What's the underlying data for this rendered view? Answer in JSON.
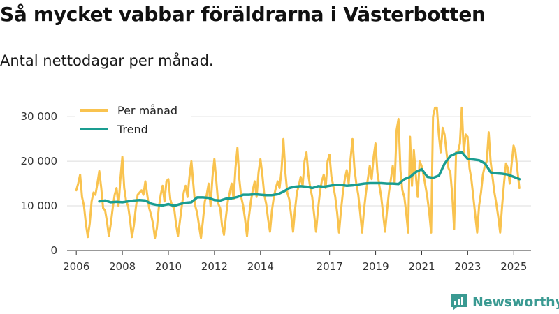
{
  "chart_data": {
    "type": "line",
    "title": "Så mycket vabbar föräldrarna i Västerbotten",
    "subtitle": "Antal nettodagar per månad.",
    "xlabel": "",
    "ylabel": "",
    "ylim": [
      0,
      33000
    ],
    "xlim": [
      2005.6,
      2025.75
    ],
    "grid": true,
    "legend_position": "top-left",
    "y_ticks": [
      {
        "value": 0,
        "label": "0"
      },
      {
        "value": 10000,
        "label": "10 000"
      },
      {
        "value": 20000,
        "label": "20 000"
      },
      {
        "value": 30000,
        "label": "30 000"
      }
    ],
    "x_ticks": [
      {
        "value": 2006,
        "label": "2006"
      },
      {
        "value": 2008,
        "label": "2008"
      },
      {
        "value": 2010,
        "label": "2010"
      },
      {
        "value": 2012,
        "label": "2012"
      },
      {
        "value": 2014,
        "label": "2014"
      },
      {
        "value": 2017,
        "label": "2017"
      },
      {
        "value": 2019,
        "label": "2019"
      },
      {
        "value": 2021,
        "label": "2021"
      },
      {
        "value": 2023,
        "label": "2023"
      },
      {
        "value": 2025,
        "label": "2025"
      }
    ],
    "series": [
      {
        "name": "Per månad",
        "color": "#f9c34f",
        "x_start": 2006.0,
        "x_step": 0.0833,
        "values": [
          13500,
          15000,
          17000,
          12000,
          10000,
          6000,
          3000,
          6000,
          11000,
          13000,
          12500,
          15000,
          17800,
          14000,
          9500,
          9000,
          6500,
          3200,
          6000,
          9500,
          12500,
          14000,
          10000,
          16000,
          21000,
          14000,
          11000,
          10000,
          7000,
          3000,
          5500,
          9500,
          12500,
          13000,
          13500,
          12500,
          15500,
          12500,
          9500,
          8000,
          6000,
          2800,
          5000,
          9500,
          12500,
          14500,
          11000,
          15500,
          16000,
          11500,
          10000,
          9500,
          6000,
          3200,
          6500,
          10000,
          13000,
          14500,
          12000,
          16500,
          20000,
          15000,
          10000,
          8500,
          5500,
          2800,
          6500,
          11000,
          12500,
          15000,
          10000,
          16500,
          20500,
          15500,
          10500,
          9500,
          5500,
          3500,
          7500,
          11000,
          13000,
          15000,
          11500,
          18500,
          23000,
          16000,
          12000,
          10000,
          7000,
          3200,
          7500,
          11000,
          13500,
          15500,
          12000,
          17500,
          20500,
          17000,
          12500,
          10500,
          7000,
          4200,
          9000,
          12000,
          14000,
          15500,
          14000,
          18000,
          25000,
          17500,
          13000,
          11500,
          8000,
          4200,
          9000,
          13000,
          14500,
          16500,
          14500,
          20000,
          22000,
          17000,
          14000,
          12000,
          8000,
          4200,
          9000,
          13000,
          15500,
          17000,
          14000,
          20000,
          21500,
          16500,
          14500,
          12000,
          8500,
          4000,
          9000,
          13000,
          16000,
          18000,
          15000,
          20500,
          25000,
          18500,
          15000,
          12500,
          8500,
          4000,
          9000,
          13000,
          16000,
          19000,
          16000,
          21000,
          24000,
          17500,
          14500,
          12000,
          8000,
          4200,
          9000,
          13000,
          16000,
          19000,
          15000,
          27000,
          29500,
          18000,
          13500,
          12000,
          8500,
          4000,
          25500,
          14500,
          22500,
          17000,
          12000,
          20000,
          19000,
          17000,
          14500,
          12000,
          8500,
          4000,
          30000,
          32000,
          32000,
          26000,
          22000,
          27500,
          26000,
          22000,
          18500,
          17500,
          12500,
          4800,
          22000,
          22000,
          24000,
          32000,
          22000,
          26000,
          25500,
          18500,
          16000,
          12000,
          8000,
          4000,
          10000,
          13000,
          17000,
          19000,
          20000,
          26500,
          20000,
          16500,
          13000,
          10500,
          7500,
          4000,
          10000,
          15000,
          19500,
          18500,
          15000,
          19500,
          23500,
          22000,
          18000,
          14000
        ]
      },
      {
        "name": "Trend",
        "color": "#1a9d91",
        "points": [
          [
            2007.0,
            11000
          ],
          [
            2007.25,
            11200
          ],
          [
            2007.5,
            10800
          ],
          [
            2007.75,
            10900
          ],
          [
            2008.0,
            10800
          ],
          [
            2008.25,
            11000
          ],
          [
            2008.5,
            11200
          ],
          [
            2008.75,
            11300
          ],
          [
            2009.0,
            11200
          ],
          [
            2009.25,
            10500
          ],
          [
            2009.5,
            10200
          ],
          [
            2009.75,
            10100
          ],
          [
            2010.0,
            10400
          ],
          [
            2010.25,
            10000
          ],
          [
            2010.5,
            10400
          ],
          [
            2010.75,
            10700
          ],
          [
            2011.0,
            10800
          ],
          [
            2011.25,
            11900
          ],
          [
            2011.5,
            11900
          ],
          [
            2011.75,
            11800
          ],
          [
            2012.0,
            11300
          ],
          [
            2012.25,
            11200
          ],
          [
            2012.5,
            11600
          ],
          [
            2012.75,
            11700
          ],
          [
            2013.0,
            12000
          ],
          [
            2013.25,
            12500
          ],
          [
            2013.5,
            12500
          ],
          [
            2013.75,
            12600
          ],
          [
            2014.0,
            12500
          ],
          [
            2014.25,
            12400
          ],
          [
            2014.5,
            12400
          ],
          [
            2014.75,
            12600
          ],
          [
            2015.0,
            13200
          ],
          [
            2015.25,
            14000
          ],
          [
            2015.5,
            14300
          ],
          [
            2015.75,
            14400
          ],
          [
            2016.0,
            14300
          ],
          [
            2016.25,
            14000
          ],
          [
            2016.5,
            14400
          ],
          [
            2016.75,
            14300
          ],
          [
            2017.0,
            14500
          ],
          [
            2017.25,
            14700
          ],
          [
            2017.5,
            14700
          ],
          [
            2017.75,
            14500
          ],
          [
            2018.0,
            14600
          ],
          [
            2018.25,
            14800
          ],
          [
            2018.5,
            15000
          ],
          [
            2018.75,
            15100
          ],
          [
            2019.0,
            15100
          ],
          [
            2019.25,
            15100
          ],
          [
            2019.5,
            15000
          ],
          [
            2019.75,
            15000
          ],
          [
            2020.0,
            14900
          ],
          [
            2020.25,
            16000
          ],
          [
            2020.5,
            16500
          ],
          [
            2020.75,
            17600
          ],
          [
            2021.0,
            18200
          ],
          [
            2021.25,
            16500
          ],
          [
            2021.5,
            16300
          ],
          [
            2021.75,
            16800
          ],
          [
            2022.0,
            19500
          ],
          [
            2022.25,
            21200
          ],
          [
            2022.5,
            21800
          ],
          [
            2022.75,
            22000
          ],
          [
            2023.0,
            20500
          ],
          [
            2023.25,
            20400
          ],
          [
            2023.5,
            20200
          ],
          [
            2023.75,
            19500
          ],
          [
            2024.0,
            17500
          ],
          [
            2024.25,
            17300
          ],
          [
            2024.5,
            17200
          ],
          [
            2024.75,
            17000
          ],
          [
            2025.0,
            16500
          ],
          [
            2025.25,
            16000
          ]
        ]
      }
    ]
  },
  "branding": {
    "logo_name": "Newsworthy"
  }
}
